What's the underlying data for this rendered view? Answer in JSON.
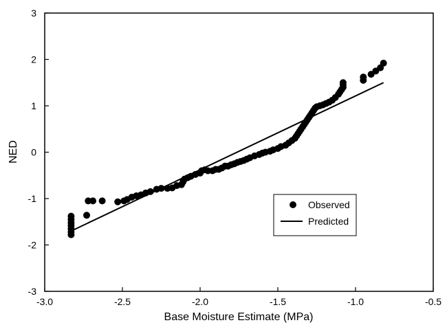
{
  "chart_data": {
    "type": "scatter",
    "title": "",
    "xlabel": "Base Moisture Estimate (MPa)",
    "ylabel": "NED",
    "xlim": [
      -3.0,
      -0.5
    ],
    "ylim": [
      -3,
      3
    ],
    "x_ticks": [
      -3.0,
      -2.5,
      -2.0,
      -1.5,
      -1.0,
      -0.5
    ],
    "x_tick_labels": [
      "-3.0",
      "-2.5",
      "-2.0",
      "-1.5",
      "-1.0",
      "-0.5"
    ],
    "y_ticks": [
      -3,
      -2,
      -1,
      0,
      1,
      2,
      3
    ],
    "y_tick_labels": [
      "-3",
      "-2",
      "-1",
      "0",
      "1",
      "2",
      "3"
    ],
    "grid": false,
    "legend_position": "lower-right",
    "colors": {
      "observed": "#000000",
      "predicted": "#000000"
    },
    "series": [
      {
        "name": "Observed",
        "kind": "points",
        "points": [
          [
            -2.83,
            -1.38
          ],
          [
            -2.83,
            -1.45
          ],
          [
            -2.83,
            -1.52
          ],
          [
            -2.83,
            -1.58
          ],
          [
            -2.83,
            -1.65
          ],
          [
            -2.83,
            -1.72
          ],
          [
            -2.83,
            -1.78
          ],
          [
            -2.73,
            -1.36
          ],
          [
            -2.72,
            -1.05
          ],
          [
            -2.69,
            -1.05
          ],
          [
            -2.63,
            -1.05
          ],
          [
            -2.53,
            -1.07
          ],
          [
            -2.49,
            -1.05
          ],
          [
            -2.47,
            -1.02
          ],
          [
            -2.44,
            -0.97
          ],
          [
            -2.41,
            -0.94
          ],
          [
            -2.38,
            -0.92
          ],
          [
            -2.35,
            -0.88
          ],
          [
            -2.32,
            -0.85
          ],
          [
            -2.28,
            -0.8
          ],
          [
            -2.25,
            -0.78
          ],
          [
            -2.21,
            -0.78
          ],
          [
            -2.18,
            -0.77
          ],
          [
            -2.15,
            -0.72
          ],
          [
            -2.12,
            -0.7
          ],
          [
            -2.11,
            -0.64
          ],
          [
            -2.1,
            -0.58
          ],
          [
            -2.08,
            -0.55
          ],
          [
            -2.06,
            -0.52
          ],
          [
            -2.03,
            -0.48
          ],
          [
            -2.0,
            -0.45
          ],
          [
            -1.99,
            -0.4
          ],
          [
            -1.97,
            -0.38
          ],
          [
            -1.95,
            -0.4
          ],
          [
            -1.92,
            -0.4
          ],
          [
            -1.9,
            -0.37
          ],
          [
            -1.88,
            -0.37
          ],
          [
            -1.86,
            -0.34
          ],
          [
            -1.84,
            -0.3
          ],
          [
            -1.82,
            -0.3
          ],
          [
            -1.8,
            -0.27
          ],
          [
            -1.78,
            -0.25
          ],
          [
            -1.76,
            -0.22
          ],
          [
            -1.74,
            -0.2
          ],
          [
            -1.72,
            -0.18
          ],
          [
            -1.7,
            -0.15
          ],
          [
            -1.68,
            -0.12
          ],
          [
            -1.65,
            -0.08
          ],
          [
            -1.62,
            -0.05
          ],
          [
            -1.6,
            -0.02
          ],
          [
            -1.58,
            0.0
          ],
          [
            -1.55,
            0.02
          ],
          [
            -1.53,
            0.05
          ],
          [
            -1.5,
            0.08
          ],
          [
            -1.48,
            0.12
          ],
          [
            -1.45,
            0.15
          ],
          [
            -1.43,
            0.2
          ],
          [
            -1.41,
            0.25
          ],
          [
            -1.39,
            0.3
          ],
          [
            -1.38,
            0.35
          ],
          [
            -1.37,
            0.4
          ],
          [
            -1.36,
            0.45
          ],
          [
            -1.35,
            0.5
          ],
          [
            -1.34,
            0.55
          ],
          [
            -1.33,
            0.6
          ],
          [
            -1.32,
            0.65
          ],
          [
            -1.31,
            0.7
          ],
          [
            -1.3,
            0.75
          ],
          [
            -1.29,
            0.8
          ],
          [
            -1.28,
            0.85
          ],
          [
            -1.27,
            0.9
          ],
          [
            -1.26,
            0.95
          ],
          [
            -1.25,
            0.98
          ],
          [
            -1.23,
            1.0
          ],
          [
            -1.21,
            1.02
          ],
          [
            -1.19,
            1.05
          ],
          [
            -1.17,
            1.08
          ],
          [
            -1.15,
            1.12
          ],
          [
            -1.13,
            1.18
          ],
          [
            -1.11,
            1.25
          ],
          [
            -1.1,
            1.3
          ],
          [
            -1.09,
            1.35
          ],
          [
            -1.08,
            1.4
          ],
          [
            -1.08,
            1.45
          ],
          [
            -1.08,
            1.5
          ],
          [
            -0.95,
            1.55
          ],
          [
            -0.95,
            1.62
          ],
          [
            -0.9,
            1.68
          ],
          [
            -0.87,
            1.75
          ],
          [
            -0.84,
            1.82
          ],
          [
            -0.82,
            1.92
          ]
        ]
      },
      {
        "name": "Predicted",
        "kind": "line",
        "points": [
          [
            -2.83,
            -1.7
          ],
          [
            -0.82,
            1.5
          ]
        ]
      }
    ]
  }
}
